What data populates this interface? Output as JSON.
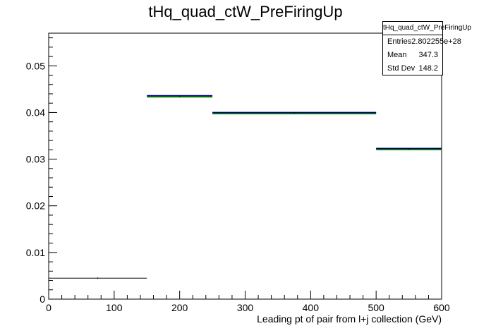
{
  "chart_data": {
    "type": "histogram",
    "title": "tHq_quad_ctW_PreFiringUp",
    "xlabel": "Leading pt of pair from l+j collection (GeV)",
    "ylabel": "",
    "xlim": [
      0,
      600
    ],
    "ylim": [
      0,
      0.057
    ],
    "x_ticks": [
      "0",
      "100",
      "200",
      "300",
      "400",
      "500",
      "600"
    ],
    "y_ticks": [
      "0",
      "0.01",
      "0.02",
      "0.03",
      "0.04",
      "0.05"
    ],
    "grid": false,
    "legend": "none",
    "bins": [
      {
        "x_low": 0,
        "x_high": 150,
        "value": 0.0045
      },
      {
        "x_low": 150,
        "x_high": 250,
        "value": 0.0435
      },
      {
        "x_low": 250,
        "x_high": 500,
        "value": 0.0399
      },
      {
        "x_low": 500,
        "x_high": 600,
        "value": 0.0322
      }
    ],
    "series_colors": {
      "main": "#000000",
      "band_blue": "#0000cc",
      "band_green": "#00aa00"
    },
    "stats": {
      "name": "tHq_quad_ctW_PreFiringUp",
      "entries_label": "Entries",
      "entries": "2.802255e+28",
      "mean_label": "Mean",
      "mean": "347.3",
      "stddev_label": "Std Dev",
      "stddev": "148.2"
    }
  }
}
